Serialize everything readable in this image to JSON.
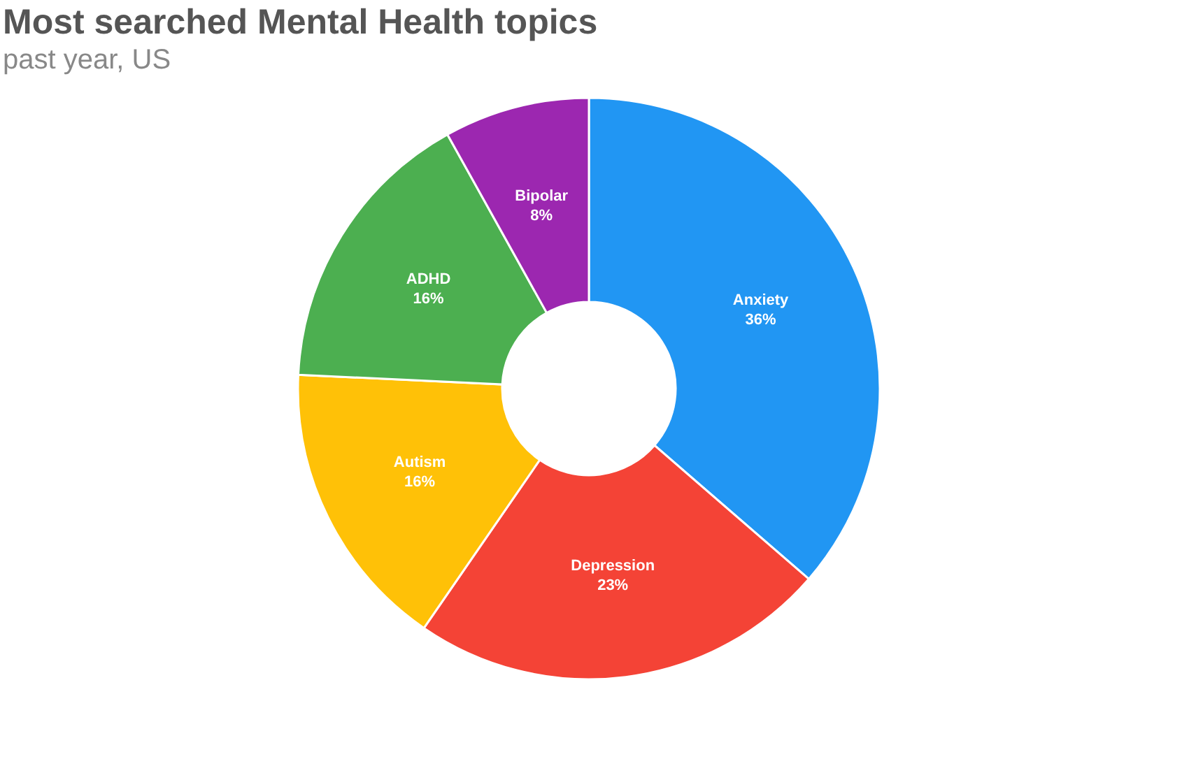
{
  "chart_data": {
    "type": "donut",
    "title": "Most searched Mental Health topics",
    "subtitle": "past year, US",
    "categories": [
      "Anxiety",
      "Depression",
      "Autism",
      "ADHD",
      "Bipolar"
    ],
    "values": [
      36,
      23,
      16,
      16,
      8
    ],
    "value_labels": [
      "36%",
      "23%",
      "16%",
      "16%",
      "8%"
    ],
    "colors": [
      "#2196f3",
      "#f44336",
      "#ffc107",
      "#4caf50",
      "#9c27b0"
    ],
    "legend": false
  }
}
